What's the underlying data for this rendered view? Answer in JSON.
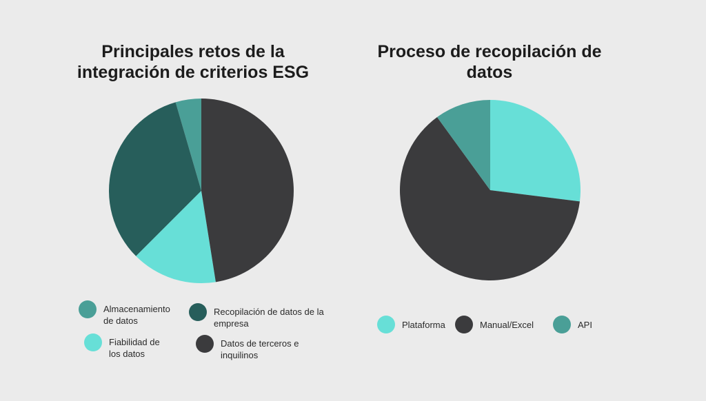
{
  "colors": {
    "background": "#ebebeb",
    "teal_light": "#67dfd7",
    "teal_medium": "#4a9f97",
    "teal_dark": "#275e5b",
    "dark_gray": "#3b3b3d"
  },
  "chart_data": [
    {
      "type": "pie",
      "title": "Principales retos de la integración de criterios ESG",
      "legend_position": "bottom",
      "series": [
        {
          "name": "Almacenamiento de datos",
          "value": 4.5,
          "color": "#4a9f97"
        },
        {
          "name": "Recopilación de datos de la empresa",
          "value": 33,
          "color": "#275e5b"
        },
        {
          "name": "Fiabilidad de los datos",
          "value": 15,
          "color": "#67dfd7"
        },
        {
          "name": "Datos de terceros e inquilinos",
          "value": 47.5,
          "color": "#3b3b3d"
        }
      ]
    },
    {
      "type": "pie",
      "title": "Proceso de recopilación de datos",
      "legend_position": "bottom",
      "series": [
        {
          "name": "Plataforma",
          "value": 27,
          "color": "#67dfd7"
        },
        {
          "name": "Manual/Excel",
          "value": 63,
          "color": "#3b3b3d"
        },
        {
          "name": "API",
          "value": 10,
          "color": "#4a9f97"
        }
      ]
    }
  ]
}
